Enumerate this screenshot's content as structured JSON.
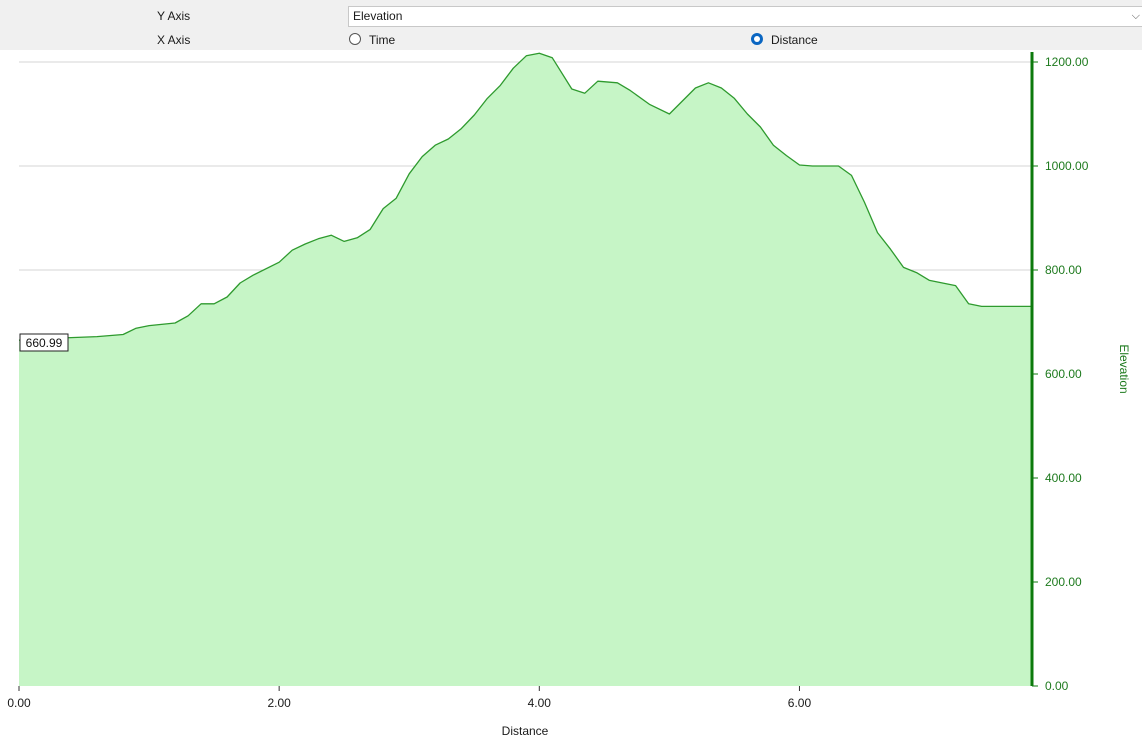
{
  "controls": {
    "y_axis_label": "Y Axis",
    "x_axis_label": "X Axis",
    "y_axis_selected": "Elevation",
    "x_axis_options": [
      "Time",
      "Distance"
    ],
    "x_axis_selected": "Distance"
  },
  "colors": {
    "fill": "#c6f5c6",
    "line": "#2e9a2e",
    "axis": "#0d7a0d",
    "grid": "#d6d6d6"
  },
  "chart_data": {
    "type": "area",
    "xlabel": "Distance",
    "ylabel": "Elevation",
    "xlim": [
      0,
      7.78
    ],
    "ylim": [
      0,
      1200
    ],
    "x_ticks": [
      "0.00",
      "2.00",
      "4.00",
      "6.00"
    ],
    "y_ticks": [
      "0.00",
      "200.00",
      "400.00",
      "600.00",
      "800.00",
      "1000.00",
      "1200.00"
    ],
    "grid": true,
    "y_axis_side": "right",
    "cursor_readout": "660.99",
    "x": [
      0,
      0.2,
      0.4,
      0.6,
      0.8,
      0.9,
      1.0,
      1.2,
      1.3,
      1.4,
      1.5,
      1.6,
      1.7,
      1.8,
      2.0,
      2.1,
      2.2,
      2.3,
      2.4,
      2.5,
      2.6,
      2.7,
      2.8,
      2.9,
      3.0,
      3.1,
      3.2,
      3.3,
      3.4,
      3.5,
      3.6,
      3.7,
      3.8,
      3.9,
      4.0,
      4.1,
      4.15,
      4.25,
      4.35,
      4.45,
      4.6,
      4.7,
      4.85,
      5.0,
      5.1,
      5.2,
      5.3,
      5.4,
      5.5,
      5.6,
      5.7,
      5.8,
      5.9,
      6.0,
      6.1,
      6.2,
      6.3,
      6.4,
      6.5,
      6.6,
      6.7,
      6.8,
      6.85,
      6.9,
      7.0,
      7.1,
      7.2,
      7.3,
      7.4,
      7.5,
      7.6,
      7.7,
      7.75,
      7.78
    ],
    "y": [
      665,
      668,
      670,
      672,
      676,
      688,
      693,
      698,
      712,
      735,
      735,
      748,
      775,
      790,
      815,
      838,
      850,
      860,
      867,
      855,
      862,
      878,
      918,
      938,
      985,
      1018,
      1040,
      1052,
      1072,
      1098,
      1130,
      1155,
      1188,
      1212,
      1217,
      1208,
      1188,
      1148,
      1140,
      1163,
      1160,
      1145,
      1118,
      1100,
      1125,
      1150,
      1160,
      1150,
      1130,
      1100,
      1075,
      1040,
      1020,
      1002,
      1000,
      1000,
      1000,
      982,
      930,
      872,
      840,
      805,
      800,
      795,
      780,
      775,
      770,
      735,
      730,
      730,
      730,
      730,
      730,
      730
    ]
  }
}
